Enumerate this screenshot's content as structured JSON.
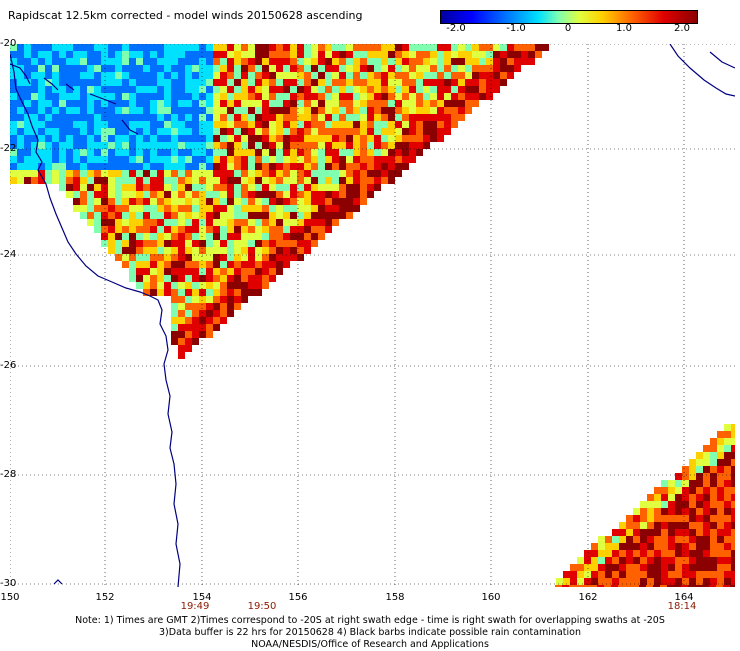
{
  "title": "Rapidscat 12.5km corrected - model winds 20150628 ascending",
  "colorbar": {
    "ticks": [
      "-2.0",
      "-1.0",
      "0",
      "1.0",
      "2.0"
    ],
    "colors": [
      "#0000a0",
      "#0000ff",
      "#0070ff",
      "#00e0ff",
      "#80ffb0",
      "#e0ff40",
      "#ffd000",
      "#ff6000",
      "#e00000",
      "#8b0000"
    ]
  },
  "map": {
    "lat_labels": [
      "-20",
      "-22",
      "-24",
      "-26",
      "-28",
      "-30"
    ],
    "lon_labels": [
      "150",
      "152",
      "154",
      "156",
      "158",
      "160",
      "162",
      "164"
    ],
    "times": [
      "19:49",
      "19:50",
      "18:14"
    ],
    "coast_color": "#000080",
    "grid_color": "#000000"
  },
  "notes": [
    "Note: 1) Times are GMT 2)Times correspond to -20S at right swath edge - time is right swath for overlapping swaths at -20S",
    "3)Data buffer is 22 hrs for 20150628 4) Black barbs indicate possible rain contamination",
    "NOAA/NESDIS/Office of Research and Applications"
  ]
}
